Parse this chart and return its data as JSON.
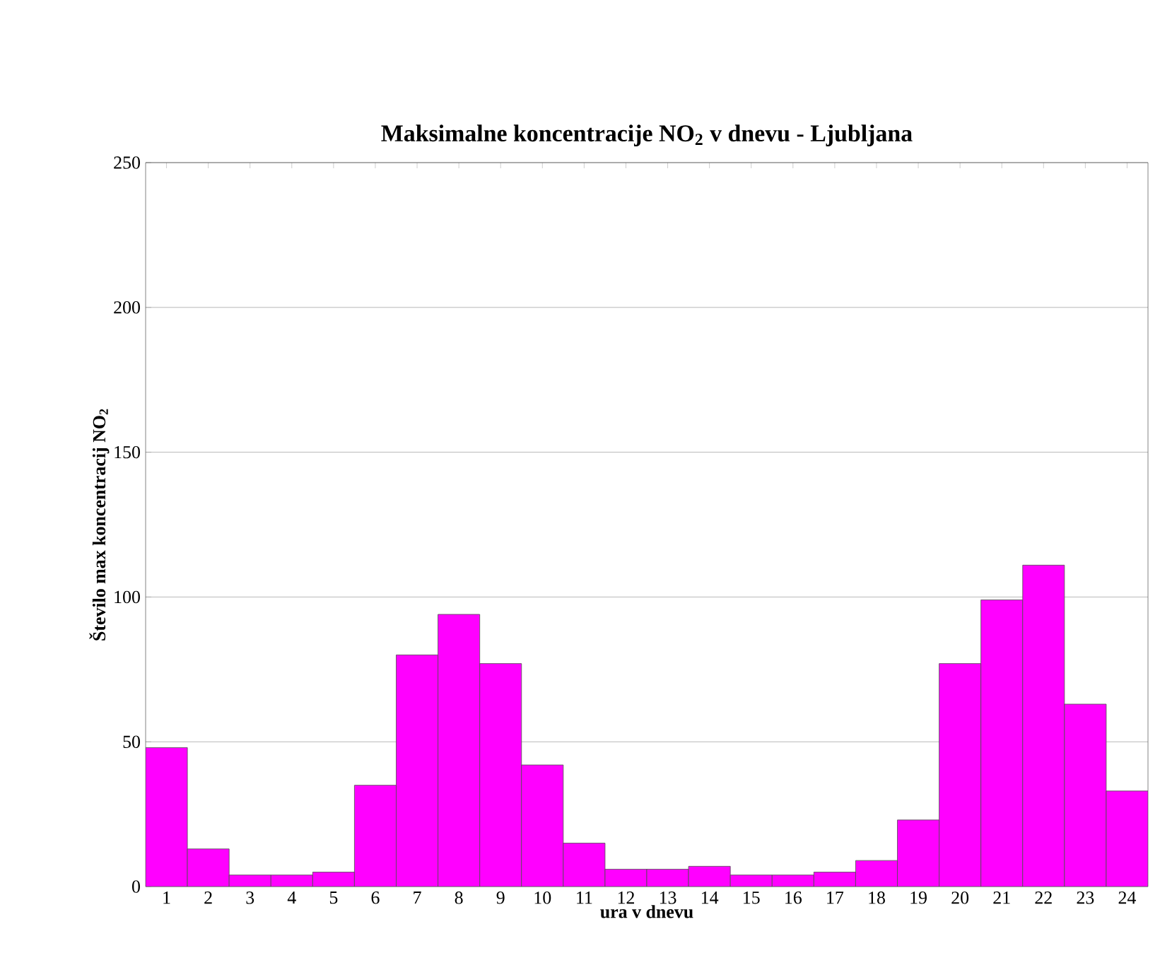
{
  "chart_data": {
    "type": "bar",
    "title": "Maksimalne koncentracije NO$_{2}$ v dnevu - Ljubljana",
    "xlabel": "ura v dnevu",
    "ylabel": "Število max koncentracij NO$_{2}$",
    "categories": [
      "1",
      "2",
      "3",
      "4",
      "5",
      "6",
      "7",
      "8",
      "9",
      "10",
      "11",
      "12",
      "13",
      "14",
      "15",
      "16",
      "17",
      "18",
      "19",
      "20",
      "21",
      "22",
      "23",
      "24"
    ],
    "values": [
      48,
      13,
      4,
      4,
      5,
      35,
      80,
      94,
      77,
      42,
      15,
      6,
      6,
      7,
      4,
      4,
      5,
      9,
      23,
      77,
      99,
      111,
      63,
      33
    ],
    "color": "#ff00ff",
    "ylim": [
      0,
      250
    ],
    "yticks": [
      0,
      50,
      100,
      150,
      200,
      250
    ],
    "grid": "y"
  }
}
